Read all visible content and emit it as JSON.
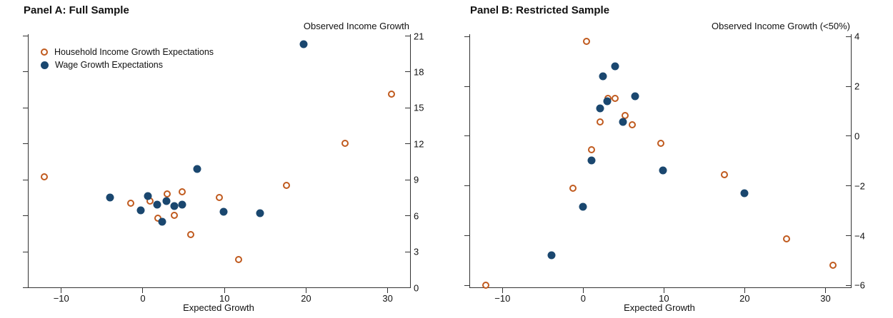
{
  "figure": {
    "background": "#ffffff",
    "accent_orange": "#C05A1E",
    "accent_navy": "#1A476F",
    "axis_color": "#333333"
  },
  "chart_data": [
    {
      "panel": "A",
      "type": "scatter",
      "title": "Panel A: Full Sample",
      "xlabel": "Expected Growth",
      "ylabel": "Observed Income Growth",
      "xlim": [
        -14.05,
        32.7
      ],
      "ylim": [
        0,
        21.12
      ],
      "xticks": [
        -10,
        0,
        10,
        20,
        30
      ],
      "yticks": [
        0,
        3,
        6,
        9,
        12,
        15,
        18,
        21
      ],
      "grid": false,
      "legend_position": "top-left-inside",
      "series": [
        {
          "name": "Household Income Growth Expectations",
          "marker": "open-circle",
          "color": "#C05A1E",
          "points": [
            [
              -12,
              9.2
            ],
            [
              -1.4,
              7.0
            ],
            [
              0.9,
              7.2
            ],
            [
              1.9,
              5.8
            ],
            [
              3.0,
              7.8
            ],
            [
              3.9,
              6.0
            ],
            [
              4.9,
              8.0
            ],
            [
              5.9,
              4.4
            ],
            [
              9.4,
              7.5
            ],
            [
              11.8,
              2.3
            ],
            [
              17.6,
              8.5
            ],
            [
              24.8,
              12.0
            ],
            [
              30.5,
              16.1
            ]
          ]
        },
        {
          "name": "Wage Growth Expectations",
          "marker": "filled-circle",
          "color": "#1A476F",
          "points": [
            [
              -4.0,
              7.5
            ],
            [
              -0.2,
              6.4
            ],
            [
              0.7,
              7.6
            ],
            [
              1.8,
              6.9
            ],
            [
              2.4,
              5.5
            ],
            [
              2.9,
              7.2
            ],
            [
              3.9,
              6.8
            ],
            [
              4.9,
              6.9
            ],
            [
              6.7,
              9.9
            ],
            [
              9.9,
              6.3
            ],
            [
              14.4,
              6.2
            ],
            [
              19.7,
              20.3
            ]
          ]
        }
      ]
    },
    {
      "panel": "B",
      "type": "scatter",
      "title": "Panel B: Restricted Sample",
      "xlabel": "Expected Growth",
      "ylabel": "Observed Income Growth (<50%)",
      "xlim": [
        -14.05,
        33.1
      ],
      "ylim": [
        -6.09,
        4.08
      ],
      "xticks": [
        -10,
        0,
        10,
        20,
        30
      ],
      "yticks": [
        -6,
        -4,
        -2,
        0,
        2,
        4
      ],
      "grid": false,
      "legend_position": "none",
      "series": [
        {
          "name": "Household Income Growth Expectations",
          "marker": "open-circle",
          "color": "#C05A1E",
          "points": [
            [
              -12,
              -6.0
            ],
            [
              -1.2,
              -2.1
            ],
            [
              0.5,
              3.8
            ],
            [
              1.1,
              -0.55
            ],
            [
              2.1,
              0.55
            ],
            [
              3.1,
              1.5
            ],
            [
              4.0,
              1.5
            ],
            [
              5.2,
              0.8
            ],
            [
              6.1,
              0.45
            ],
            [
              9.7,
              -0.3
            ],
            [
              17.5,
              -1.55
            ],
            [
              25.2,
              -4.15
            ],
            [
              31,
              -5.2
            ]
          ]
        },
        {
          "name": "Wage Growth Expectations",
          "marker": "filled-circle",
          "color": "#1A476F",
          "points": [
            [
              -3.9,
              -4.8
            ],
            [
              0.0,
              -2.85
            ],
            [
              1.1,
              -1.0
            ],
            [
              2.1,
              1.1
            ],
            [
              2.5,
              2.4
            ],
            [
              3.0,
              1.4
            ],
            [
              4.0,
              2.8
            ],
            [
              5.0,
              0.55
            ],
            [
              6.5,
              1.6
            ],
            [
              9.9,
              -1.4
            ],
            [
              20.0,
              -2.3
            ]
          ]
        }
      ]
    }
  ]
}
